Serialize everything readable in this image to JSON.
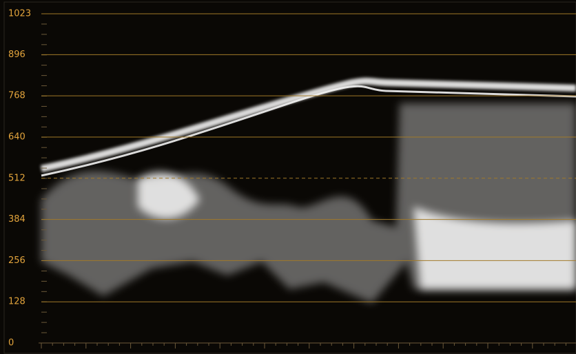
{
  "chart_data": {
    "type": "waveform",
    "ylim": [
      0,
      1023
    ],
    "yticks": [
      0,
      128,
      256,
      384,
      512,
      640,
      768,
      896,
      1023
    ],
    "grid": true,
    "grid_color": "#a27a28",
    "label_color": "#e3a43c",
    "center_line_style": "dashed"
  }
}
